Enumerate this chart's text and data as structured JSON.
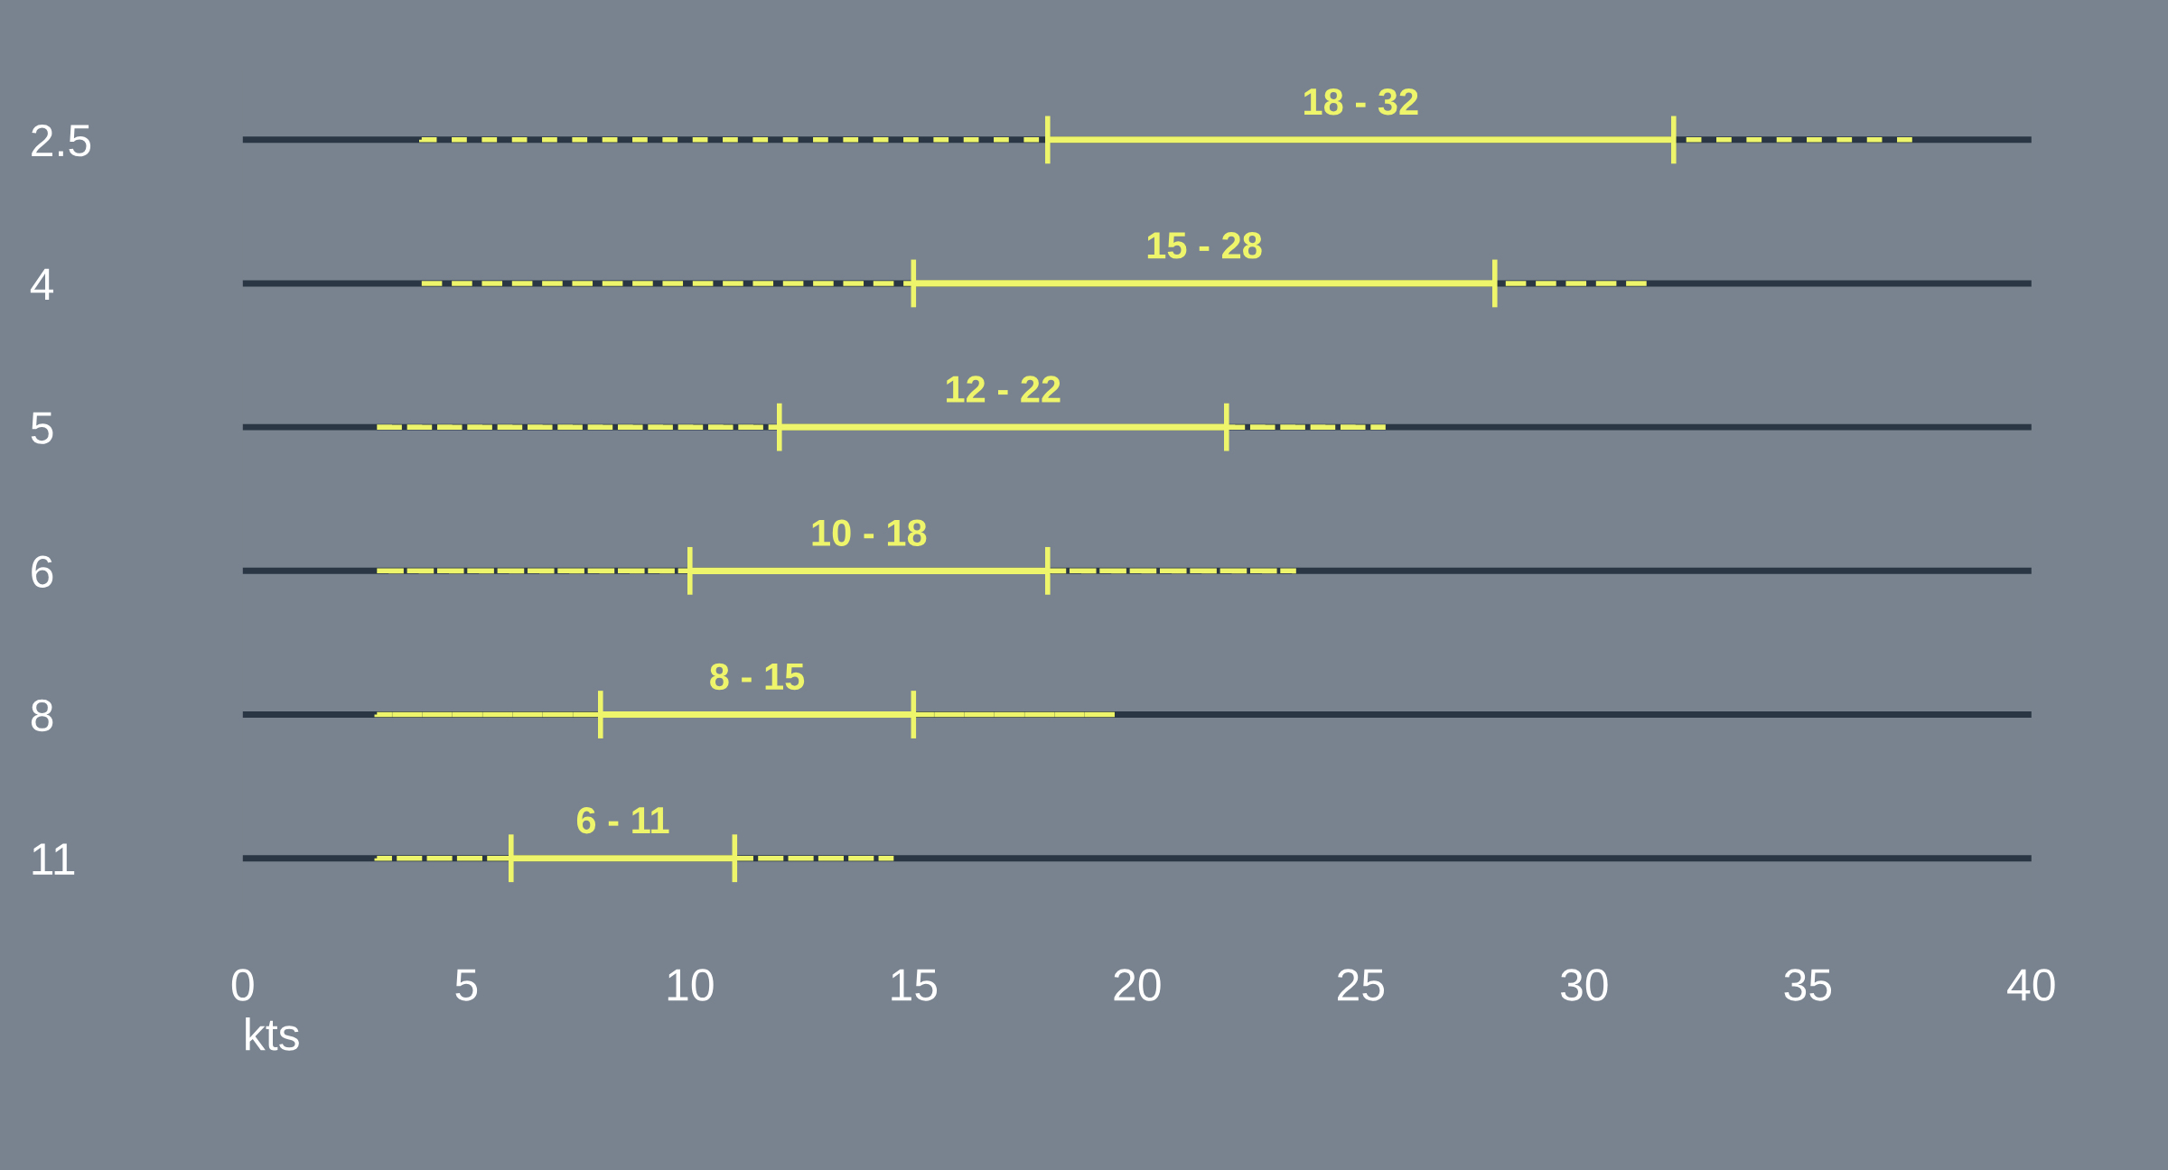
{
  "chart_data": {
    "type": "bar",
    "orientation": "horizontal",
    "xlabel": "kts",
    "categories": [
      "2.5",
      "4",
      "5",
      "6",
      "8",
      "11"
    ],
    "series": [
      {
        "color": "#eef56a",
        "line_style": "dashed",
        "base": [
          4,
          4,
          3,
          3,
          3,
          3
        ],
        "values": [
          33.5,
          27.5,
          22.5,
          20.5,
          16.5,
          11.5
        ]
      },
      {
        "color": "#eef56a",
        "line_style": "solid",
        "base": [
          18,
          15,
          12,
          10,
          8,
          6
        ],
        "values": [
          14,
          13,
          10,
          8,
          7,
          5
        ]
      }
    ],
    "annotations": [
      {
        "text": "18 - 32",
        "x": 25,
        "y": "2.5"
      },
      {
        "text": "15 - 28",
        "x": 21.5,
        "y": "4"
      },
      {
        "text": "12 - 22",
        "x": 17,
        "y": "5"
      },
      {
        "text": "10 - 18",
        "x": 14,
        "y": "6"
      },
      {
        "text": "8 - 15",
        "x": 11.5,
        "y": "8"
      },
      {
        "text": "6 - 11",
        "x": 8.5,
        "y": "11"
      }
    ],
    "xlim": [
      0,
      40
    ],
    "xticks": [
      0,
      5,
      10,
      15,
      20,
      25,
      30,
      35,
      40
    ],
    "grid": "y"
  }
}
